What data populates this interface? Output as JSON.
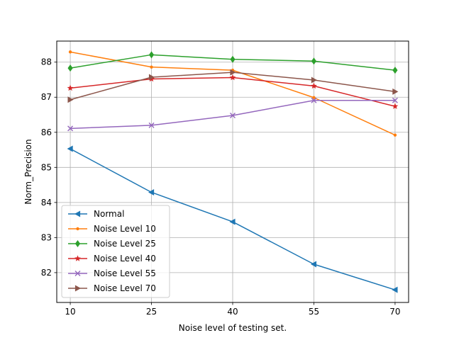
{
  "chart_data": {
    "type": "line",
    "title": "",
    "xlabel": "Noise level of testing set.",
    "ylabel": "Norm_Precision",
    "x": [
      10,
      25,
      40,
      55,
      70
    ],
    "xticks": [
      "10",
      "25",
      "40",
      "55",
      "70"
    ],
    "yticks": [
      82,
      83,
      84,
      85,
      86,
      87,
      88
    ],
    "xlim": [
      7.5,
      72.5
    ],
    "ylim": [
      81.15,
      88.6
    ],
    "grid": true,
    "legend_position": "lower-left",
    "series": [
      {
        "name": "Normal",
        "color": "#1f77b4",
        "marker": "triangle-left",
        "values": [
          85.53,
          84.29,
          83.45,
          82.24,
          81.51
        ]
      },
      {
        "name": "Noise Level 10",
        "color": "#ff7f0e",
        "marker": "point",
        "values": [
          88.29,
          87.86,
          87.77,
          86.99,
          85.92
        ]
      },
      {
        "name": "Noise Level 25",
        "color": "#2ca02c",
        "marker": "diamond",
        "values": [
          87.83,
          88.21,
          88.08,
          88.03,
          87.77
        ]
      },
      {
        "name": "Noise Level 40",
        "color": "#d62728",
        "marker": "star",
        "values": [
          87.26,
          87.52,
          87.56,
          87.32,
          86.74
        ]
      },
      {
        "name": "Noise Level 55",
        "color": "#9467bd",
        "marker": "x",
        "values": [
          86.11,
          86.2,
          86.48,
          86.91,
          86.91
        ]
      },
      {
        "name": "Noise Level 70",
        "color": "#8c564b",
        "marker": "triangle-right",
        "values": [
          86.93,
          87.57,
          87.71,
          87.49,
          87.16
        ]
      }
    ]
  }
}
